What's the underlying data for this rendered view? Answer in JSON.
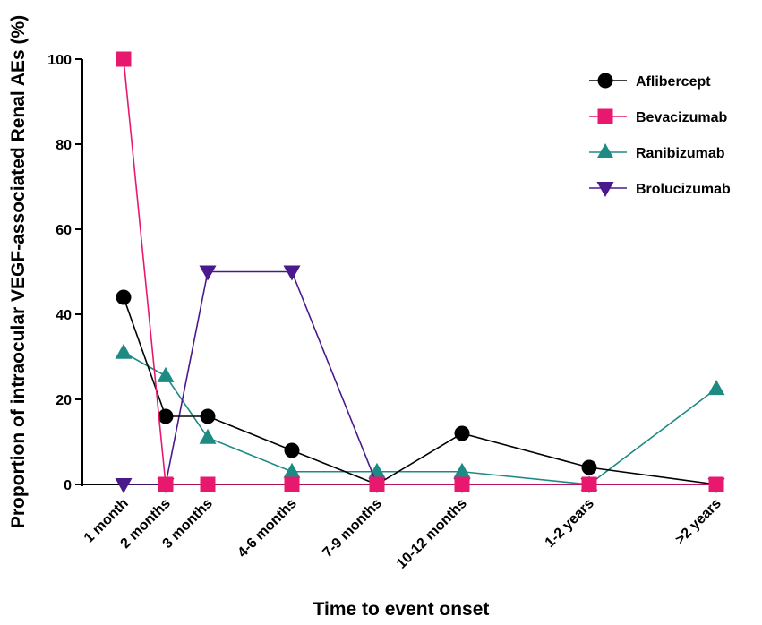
{
  "chart_data": {
    "type": "line",
    "title": "",
    "xlabel": "Time to event onset",
    "ylabel": "Proportion of intraocular VEGF-associated Renal AEs (%)",
    "ylim": [
      0,
      100
    ],
    "yticks": [
      0,
      20,
      40,
      60,
      80,
      100
    ],
    "grid": false,
    "legend_position": "top-right",
    "categories": [
      "1 month",
      "2 months",
      "3 months",
      "4-6 months",
      "7-9 months",
      "10-12 months",
      "1-2 years",
      ">2 years"
    ],
    "series": [
      {
        "name": "Aflibercept",
        "color": "#000000",
        "marker": "circle",
        "values": [
          44,
          16,
          16,
          8,
          0,
          12,
          4,
          0
        ]
      },
      {
        "name": "Bevacizumab",
        "color": "#e8186e",
        "marker": "square",
        "values": [
          100,
          0,
          0,
          0,
          0,
          0,
          0,
          0
        ]
      },
      {
        "name": "Ranibizumab",
        "color": "#1e8a84",
        "marker": "triangle-up",
        "values": [
          31,
          25.5,
          11,
          3,
          3,
          3,
          0,
          22.5
        ]
      },
      {
        "name": "Brolucizumab",
        "color": "#4a1a8c",
        "marker": "triangle-down",
        "values": [
          0,
          0,
          50,
          50,
          0,
          0,
          0,
          0
        ]
      }
    ]
  }
}
